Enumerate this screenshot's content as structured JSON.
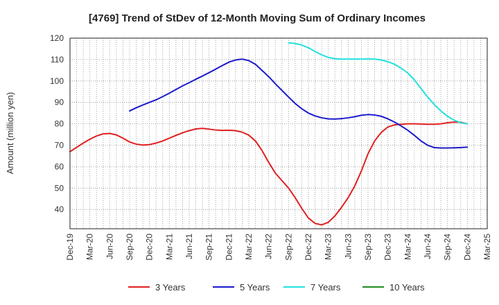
{
  "chart_data": {
    "type": "line",
    "title": "[4769]  Trend of StDev of 12-Month Moving Sum of Ordinary Incomes",
    "ylabel": "Amount (million yen)",
    "xlabel": "",
    "ylim": [
      31,
      120
    ],
    "yticks": [
      40,
      50,
      60,
      70,
      80,
      90,
      100,
      110,
      120
    ],
    "xticks": [
      "Dec-19",
      "Mar-20",
      "Jun-20",
      "Sep-20",
      "Dec-20",
      "Mar-21",
      "Jun-21",
      "Sep-21",
      "Dec-21",
      "Mar-22",
      "Jun-22",
      "Sep-22",
      "Dec-22",
      "Mar-23",
      "Jun-23",
      "Sep-23",
      "Dec-23",
      "Mar-24",
      "Jun-24",
      "Sep-24",
      "Dec-24",
      "Mar-25"
    ],
    "grid": true,
    "legend_position": "bottom",
    "series": [
      {
        "name": "3 Years",
        "color": "#e02020",
        "x": [
          "Dec-19",
          "Jan-20",
          "Feb-20",
          "Mar-20",
          "Apr-20",
          "May-20",
          "Jun-20",
          "Jul-20",
          "Aug-20",
          "Sep-20",
          "Oct-20",
          "Nov-20",
          "Dec-20",
          "Jan-21",
          "Feb-21",
          "Mar-21",
          "Apr-21",
          "May-21",
          "Jun-21",
          "Jul-21",
          "Aug-21",
          "Sep-21",
          "Oct-21",
          "Nov-21",
          "Dec-21",
          "Jan-22",
          "Feb-22",
          "Mar-22",
          "Apr-22",
          "May-22",
          "Jun-22",
          "Jul-22",
          "Aug-22",
          "Sep-22",
          "Oct-22",
          "Nov-22",
          "Dec-22",
          "Jan-23",
          "Feb-23",
          "Mar-23",
          "Apr-23",
          "May-23",
          "Jun-23",
          "Jul-23",
          "Aug-23",
          "Sep-23",
          "Oct-23",
          "Nov-23",
          "Dec-23",
          "Jan-24",
          "Feb-24",
          "Mar-24",
          "Apr-24",
          "May-24",
          "Jun-24",
          "Jul-24",
          "Aug-24",
          "Sep-24",
          "Oct-24",
          "Nov-24",
          "Dec-24"
        ],
        "values": [
          67,
          69,
          71,
          72.8,
          74.3,
          75.3,
          75.5,
          74.8,
          73.3,
          71.5,
          70.5,
          70.1,
          70.3,
          71,
          72,
          73.3,
          74.6,
          75.8,
          76.8,
          77.6,
          77.9,
          77.5,
          77.1,
          76.9,
          77,
          76.8,
          76.1,
          74.7,
          72,
          67.5,
          62,
          57,
          53.5,
          50,
          45.5,
          40.5,
          36,
          33.5,
          32.8,
          34,
          37,
          41,
          45.5,
          51,
          58,
          66,
          72,
          76,
          78.5,
          79.5,
          79.8,
          80,
          80,
          79.9,
          79.8,
          79.8,
          80,
          80.5,
          80.8,
          80.7,
          80
        ]
      },
      {
        "name": "5 Years",
        "color": "#1a1acc",
        "x": [
          "Sep-20",
          "Oct-20",
          "Nov-20",
          "Dec-20",
          "Jan-21",
          "Feb-21",
          "Mar-21",
          "Apr-21",
          "May-21",
          "Jun-21",
          "Jul-21",
          "Aug-21",
          "Sep-21",
          "Oct-21",
          "Nov-21",
          "Dec-21",
          "Jan-22",
          "Feb-22",
          "Mar-22",
          "Apr-22",
          "May-22",
          "Jun-22",
          "Jul-22",
          "Aug-22",
          "Sep-22",
          "Oct-22",
          "Nov-22",
          "Dec-22",
          "Jan-23",
          "Feb-23",
          "Mar-23",
          "Apr-23",
          "May-23",
          "Jun-23",
          "Jul-23",
          "Aug-23",
          "Sep-23",
          "Oct-23",
          "Nov-23",
          "Dec-23",
          "Jan-24",
          "Feb-24",
          "Mar-24",
          "Apr-24",
          "May-24",
          "Jun-24",
          "Jul-24",
          "Aug-24",
          "Sep-24",
          "Oct-24",
          "Nov-24",
          "Dec-24"
        ],
        "values": [
          86,
          87.5,
          88.8,
          90,
          91.2,
          92.7,
          94.3,
          96,
          97.7,
          99.2,
          100.8,
          102.3,
          103.9,
          105.5,
          107.2,
          108.8,
          109.8,
          110.2,
          109.5,
          107.8,
          104.9,
          102,
          98.7,
          95.6,
          92.5,
          89.5,
          87,
          85,
          83.7,
          82.8,
          82.3,
          82.2,
          82.4,
          82.8,
          83.3,
          84,
          84.3,
          84.1,
          83.5,
          82.3,
          80.8,
          79,
          77,
          74.6,
          72,
          70,
          68.9,
          68.7,
          68.7,
          68.8,
          68.9,
          69.1
        ]
      },
      {
        "name": "7 Years",
        "color": "#22e0e0",
        "x": [
          "Sep-22",
          "Oct-22",
          "Nov-22",
          "Dec-22",
          "Jan-23",
          "Feb-23",
          "Mar-23",
          "Apr-23",
          "May-23",
          "Jun-23",
          "Jul-23",
          "Aug-23",
          "Sep-23",
          "Oct-23",
          "Nov-23",
          "Dec-23",
          "Jan-24",
          "Feb-24",
          "Mar-24",
          "Apr-24",
          "May-24",
          "Jun-24",
          "Jul-24",
          "Aug-24",
          "Sep-24",
          "Oct-24",
          "Nov-24",
          "Dec-24"
        ],
        "values": [
          117.8,
          117.5,
          116.8,
          115.5,
          113.8,
          112.2,
          111,
          110.4,
          110.2,
          110.2,
          110.2,
          110.2,
          110.3,
          110.2,
          109.8,
          109,
          107.8,
          106,
          103.7,
          100.5,
          96.5,
          92.5,
          89,
          86,
          83.5,
          81.7,
          80.5,
          80
        ]
      },
      {
        "name": "10 Years",
        "color": "#228b22",
        "x": [],
        "values": []
      }
    ]
  }
}
